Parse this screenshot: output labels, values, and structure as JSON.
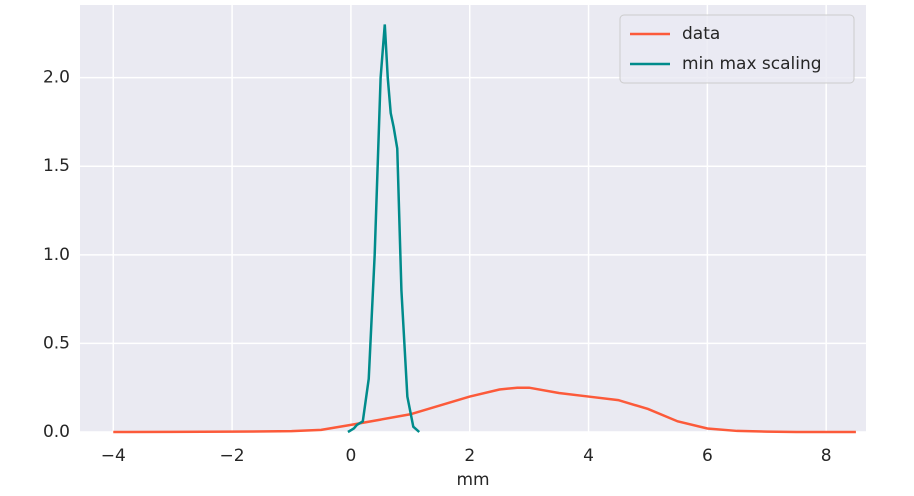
{
  "chart_data": {
    "type": "line",
    "x_label": "mm",
    "series": [
      {
        "name": "data",
        "color": "#fc5a3a",
        "x": [
          -4,
          -3,
          -2,
          -1,
          -0.5,
          0,
          0.5,
          1,
          1.5,
          2,
          2.5,
          2.8,
          3,
          3.5,
          4,
          4.5,
          5,
          5.5,
          6,
          6.5,
          7,
          7.5,
          8.5
        ],
        "values": [
          0,
          0.001,
          0.002,
          0.005,
          0.012,
          0.04,
          0.07,
          0.1,
          0.15,
          0.2,
          0.24,
          0.25,
          0.25,
          0.22,
          0.2,
          0.18,
          0.13,
          0.06,
          0.02,
          0.006,
          0.002,
          0,
          0
        ]
      },
      {
        "name": "min max scaling",
        "color": "#008b8b",
        "x": [
          -0.05,
          0.05,
          0.1,
          0.15,
          0.2,
          0.3,
          0.4,
          0.5,
          0.57,
          0.62,
          0.67,
          0.72,
          0.78,
          0.85,
          0.95,
          1.05,
          1.15
        ],
        "values": [
          0,
          0.02,
          0.04,
          0.05,
          0.06,
          0.3,
          1.0,
          2.0,
          2.3,
          2.0,
          1.8,
          1.72,
          1.6,
          0.8,
          0.2,
          0.03,
          0
        ]
      }
    ],
    "xlim": [
      -4.56,
      8.67
    ],
    "ylim": [
      0,
      2.41
    ],
    "xticks": [
      {
        "value": -4,
        "label": "−4"
      },
      {
        "value": -2,
        "label": "−2"
      },
      0,
      2,
      4,
      6,
      8
    ],
    "yticks": [
      {
        "value": 0,
        "label": "0.0"
      },
      {
        "value": 0.5,
        "label": "0.5"
      },
      {
        "value": 1,
        "label": "1.0"
      },
      {
        "value": 1.5,
        "label": "1.5"
      },
      {
        "value": 2,
        "label": "2.0"
      }
    ],
    "grid": true,
    "legend": "upper right"
  }
}
